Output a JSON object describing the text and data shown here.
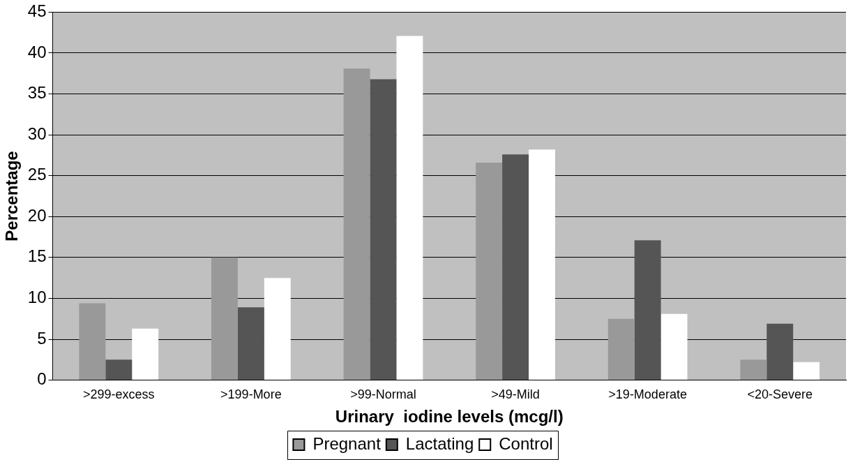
{
  "chart_data": {
    "type": "bar",
    "xlabel": "Urinary  iodine levels (mcg/l)",
    "ylabel": "Percentage",
    "categories": [
      ">299-excess",
      ">199-More",
      ">99-Normal",
      ">49-Mild",
      ">19-Moderate",
      "<20-Severe"
    ],
    "series": [
      {
        "name": "Pregnant",
        "color": "#999999",
        "values": [
          9.4,
          15,
          38.1,
          26.6,
          7.5,
          2.5
        ]
      },
      {
        "name": "Lactating",
        "color": "#555555",
        "values": [
          2.5,
          8.9,
          36.8,
          27.6,
          17.1,
          6.9
        ]
      },
      {
        "name": "Control",
        "color": "#ffffff",
        "values": [
          6.3,
          12.5,
          42.1,
          28.2,
          8.1,
          2.2
        ]
      }
    ],
    "ylim": [
      0,
      45
    ],
    "yticks": [
      0,
      5,
      10,
      15,
      20,
      25,
      30,
      35,
      40,
      45
    ],
    "grid": "y",
    "legend": "bottom"
  }
}
